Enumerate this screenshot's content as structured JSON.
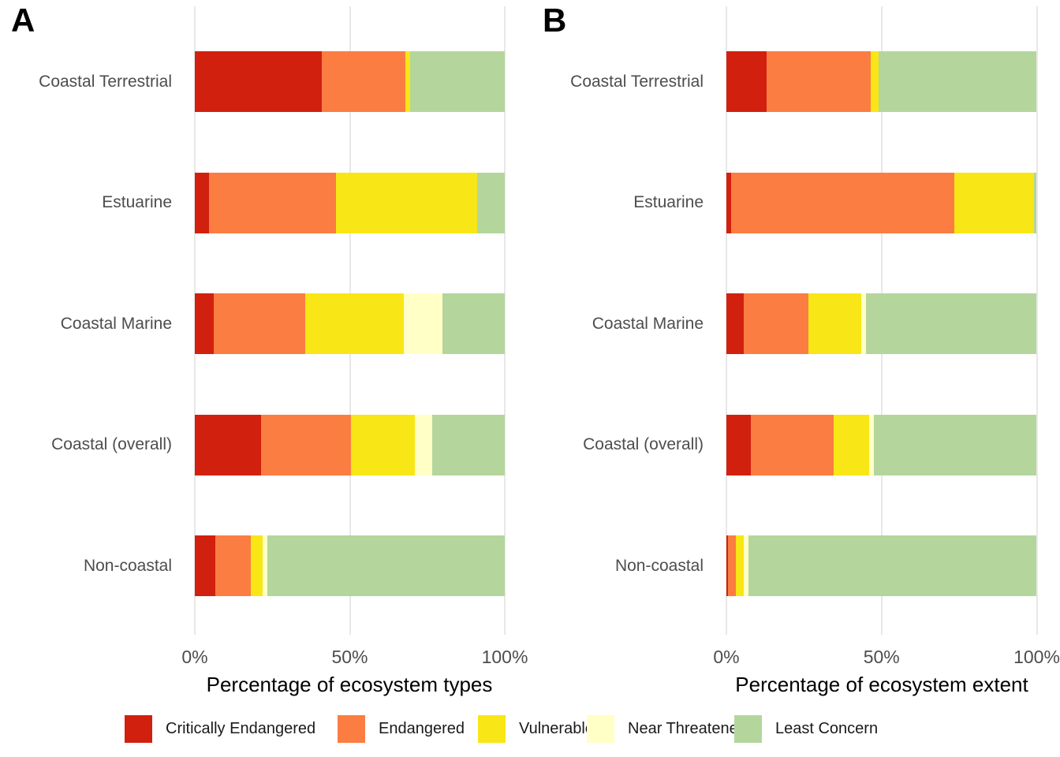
{
  "colors": {
    "critically_endangered": "#d2200e",
    "endangered": "#fb7d42",
    "vulnerable": "#f8e616",
    "near_threatened": "#ffffc6",
    "least_concern": "#b4d69c",
    "gridline": "#e8e8e8",
    "axis_text": "#4d4d4d",
    "title_text": "#000000"
  },
  "panels": [
    {
      "letter": "A"
    },
    {
      "letter": "B"
    }
  ],
  "legend": {
    "items": [
      {
        "label": "Critically Endangered",
        "color_key": "critically_endangered"
      },
      {
        "label": "Endangered",
        "color_key": "endangered"
      },
      {
        "label": "Vulnerable",
        "color_key": "vulnerable"
      },
      {
        "label": "Near Threatened",
        "color_key": "near_threatened"
      },
      {
        "label": "Least Concern",
        "color_key": "least_concern"
      }
    ]
  },
  "chart_data": [
    {
      "type": "bar",
      "orientation": "horizontal",
      "stacked": true,
      "panel": "A",
      "xlabel": "Percentage of ecosystem types",
      "x_ticks": [
        "0%",
        "50%",
        "100%"
      ],
      "x_tick_values": [
        0,
        50,
        100
      ],
      "xlim": [
        0,
        100
      ],
      "grid": "vertical-major-only",
      "legend_position": "bottom",
      "categories": [
        "Coastal Terrestrial",
        "Estuarine",
        "Coastal Marine",
        "Coastal (overall)",
        "Non-coastal"
      ],
      "series": [
        {
          "name": "Critically Endangered",
          "color_key": "critically_endangered",
          "values": [
            41,
            4.5,
            6,
            21.5,
            6.5
          ]
        },
        {
          "name": "Endangered",
          "color_key": "endangered",
          "values": [
            27,
            41,
            29.5,
            29,
            11.5
          ]
        },
        {
          "name": "Vulnerable",
          "color_key": "vulnerable",
          "values": [
            1.5,
            45.5,
            32,
            20.5,
            4
          ]
        },
        {
          "name": "Near Threatened",
          "color_key": "near_threatened",
          "values": [
            0,
            0,
            12.5,
            5.5,
            1.5
          ]
        },
        {
          "name": "Least Concern",
          "color_key": "least_concern",
          "values": [
            30.5,
            9,
            20,
            23.5,
            76.5
          ]
        }
      ]
    },
    {
      "type": "bar",
      "orientation": "horizontal",
      "stacked": true,
      "panel": "B",
      "xlabel": "Percentage of ecosystem extent",
      "x_ticks": [
        "0%",
        "50%",
        "100%"
      ],
      "x_tick_values": [
        0,
        50,
        100
      ],
      "xlim": [
        0,
        100
      ],
      "grid": "vertical-major-only",
      "legend_position": "bottom",
      "categories": [
        "Coastal Terrestrial",
        "Estuarine",
        "Coastal Marine",
        "Coastal (overall)",
        "Non-coastal"
      ],
      "series": [
        {
          "name": "Critically Endangered",
          "color_key": "critically_endangered",
          "values": [
            13,
            1.5,
            5.5,
            8,
            0.5
          ]
        },
        {
          "name": "Endangered",
          "color_key": "endangered",
          "values": [
            33.5,
            72,
            21,
            26.5,
            2.5
          ]
        },
        {
          "name": "Vulnerable",
          "color_key": "vulnerable",
          "values": [
            2.5,
            25.5,
            17,
            11.5,
            2.5
          ]
        },
        {
          "name": "Near Threatened",
          "color_key": "near_threatened",
          "values": [
            0,
            0,
            1.5,
            1.5,
            1.5
          ]
        },
        {
          "name": "Least Concern",
          "color_key": "least_concern",
          "values": [
            51,
            1,
            55,
            52.5,
            93
          ]
        }
      ]
    }
  ]
}
